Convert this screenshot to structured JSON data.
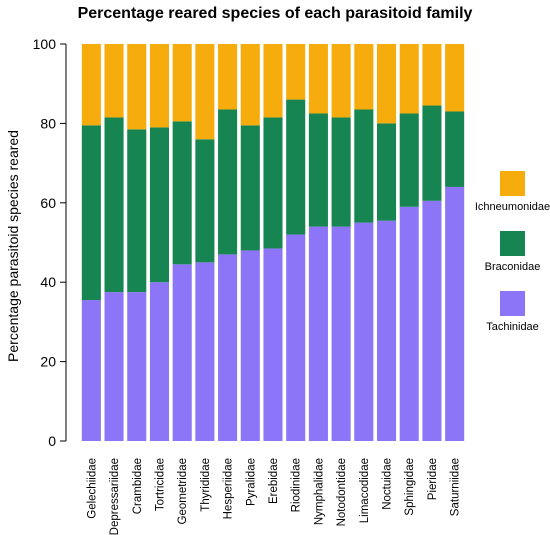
{
  "chart_data": {
    "type": "bar",
    "stacked": true,
    "title": "Percentage reared species of each parasitoid family",
    "xlabel": "",
    "ylabel": "Percentage parasitoid species reared",
    "ylim": [
      0,
      100
    ],
    "yticks": [
      0,
      20,
      40,
      60,
      80,
      100
    ],
    "categories": [
      "Gelechiidae",
      "Depressariidae",
      "Crambidae",
      "Tortricidae",
      "Geometridae",
      "Thyrididae",
      "Hesperiidae",
      "Pyralidae",
      "Erebidae",
      "Riodinidae",
      "Nymphalidae",
      "Notodontidae",
      "Limacodidae",
      "Noctuidae",
      "Sphingidae",
      "Pieridae",
      "Saturniidae"
    ],
    "series": [
      {
        "name": "Tachinidae",
        "color": "#8D75F8",
        "values": [
          35.5,
          37.5,
          37.5,
          40,
          44.5,
          45,
          47,
          48,
          48.5,
          52,
          54,
          54,
          55,
          55.5,
          59,
          60.5,
          64
        ]
      },
      {
        "name": "Braconidae",
        "color": "#168552",
        "values": [
          44,
          44,
          41,
          39,
          36,
          31,
          36.5,
          31.5,
          33,
          34,
          28.5,
          27.5,
          28.5,
          24.5,
          23.5,
          24,
          19
        ]
      },
      {
        "name": "Ichneumonidae",
        "color": "#F5AC0C",
        "values": [
          20.5,
          18.5,
          21.5,
          21,
          19.5,
          24,
          16.5,
          20.5,
          18.5,
          14,
          17.5,
          18.5,
          16.5,
          20,
          17.5,
          15.5,
          17
        ]
      }
    ],
    "legend": {
      "position": "right",
      "order": [
        "Ichneumonidae",
        "Braconidae",
        "Tachinidae"
      ]
    },
    "grid": false
  }
}
